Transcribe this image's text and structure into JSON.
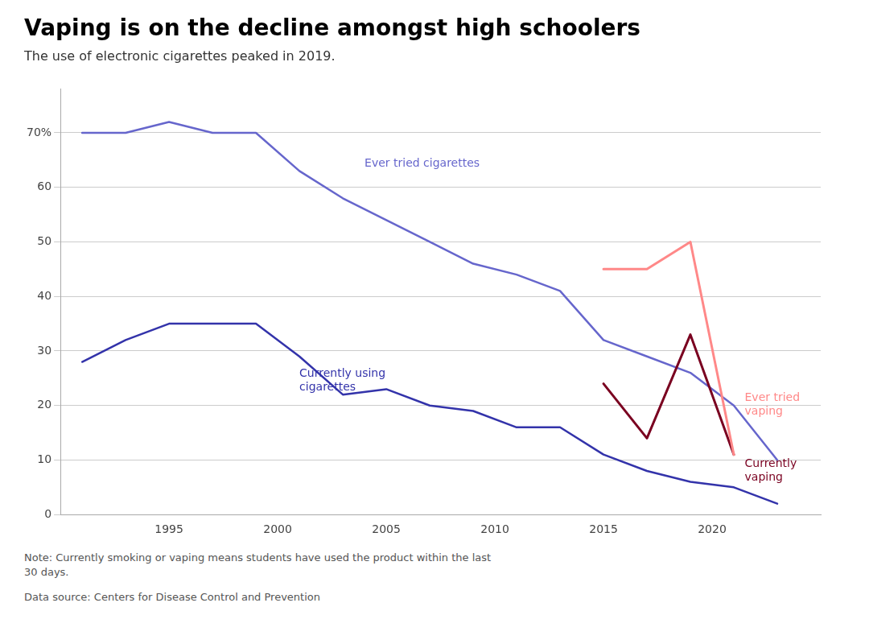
{
  "chart_data": {
    "type": "line",
    "title": "Vaping is on the decline amongst high schoolers",
    "subtitle": "The use of electronic cigarettes peaked in 2019.",
    "note": "Note: Currently smoking or vaping means students have used the product within the last\n30 days.",
    "source": "Data source: Centers for Disease Control and Prevention",
    "series": [
      {
        "color": "#6666cc",
        "x": [
          1991,
          1993,
          1995,
          1997,
          1999,
          2001,
          2003,
          2005,
          2007,
          2009,
          2011,
          2013,
          2015,
          2017,
          2019,
          2021,
          2023
        ],
        "values": [
          70,
          70,
          72,
          70,
          70,
          63,
          58,
          54,
          50,
          46,
          44,
          41,
          32,
          29,
          26,
          20,
          10
        ]
      },
      {
        "color": "#3333aa",
        "x": [
          1991,
          1993,
          1995,
          1997,
          1999,
          2001,
          2003,
          2005,
          2007,
          2009,
          2011,
          2013,
          2015,
          2017,
          2019,
          2021,
          2023
        ],
        "values": [
          28,
          32,
          35,
          35,
          35,
          29,
          22,
          23,
          20,
          19,
          16,
          16,
          11,
          8,
          6,
          5,
          2
        ]
      },
      {
        "color": "#ff8888",
        "x": [
          2015,
          2017,
          2019,
          2021
        ],
        "values": [
          45,
          45,
          50,
          11
        ]
      },
      {
        "color": "#7a0020",
        "x": [
          2015,
          2017,
          2019,
          2021
        ],
        "values": [
          24,
          14,
          33,
          11
        ]
      }
    ],
    "annotations": [
      {
        "text": "Ever tried cigarettes",
        "x": 2004,
        "y": 63,
        "color": "#6666cc"
      },
      {
        "text": "Currently using\ncigarettes",
        "x": 2001,
        "y": 27,
        "color": "#3333aa"
      },
      {
        "text": "Ever tried\nvaping",
        "x": 2021.5,
        "y": 20,
        "color": "#ff8888"
      },
      {
        "text": "Currently\nvaping",
        "x": 2021.5,
        "y": 8,
        "color": "#7a0020"
      }
    ],
    "xlim": [
      1990,
      2025
    ],
    "xticks": [
      1995,
      2000,
      2005,
      2010,
      2015,
      2020
    ],
    "ylim": [
      0,
      78
    ],
    "yticks": [
      0,
      10,
      20,
      30,
      40,
      50,
      60,
      {
        "value": 70,
        "label": "70%"
      }
    ],
    "grid": "y"
  }
}
